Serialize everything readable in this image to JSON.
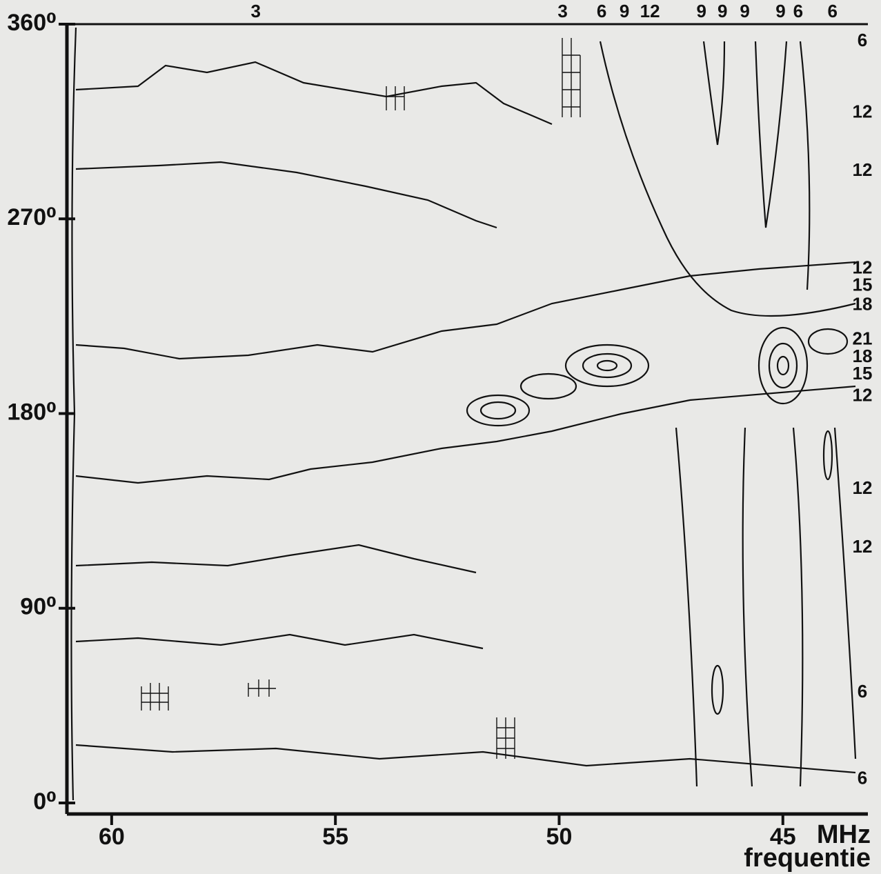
{
  "chart_data": {
    "type": "contour",
    "x_unit": "MHz",
    "x_title": "frequentie",
    "xlim": [
      61.0,
      43.1
    ],
    "ylim": [
      0,
      360
    ],
    "xticks": [
      60,
      55,
      50,
      45
    ],
    "yticks": [
      {
        "value": 0,
        "label": "0⁰"
      },
      {
        "value": 90,
        "label": "90⁰"
      },
      {
        "value": 180,
        "label": "180⁰"
      },
      {
        "value": 270,
        "label": "270⁰"
      },
      {
        "value": 360,
        "label": "360⁰"
      }
    ],
    "top_levels": [
      {
        "level": 3,
        "x": 56.78
      },
      {
        "level": 3,
        "x": 49.92
      },
      {
        "level": 6,
        "x": 49.05
      },
      {
        "level": 9,
        "x": 48.54
      },
      {
        "level": 12,
        "x": 47.97
      },
      {
        "level": 9,
        "x": 46.82
      },
      {
        "level": 9,
        "x": 46.35
      },
      {
        "level": 9,
        "x": 45.85
      },
      {
        "level": 9,
        "x": 45.05
      },
      {
        "level": 6,
        "x": 44.66
      },
      {
        "level": 6,
        "x": 43.89
      }
    ],
    "right_levels": [
      {
        "level": 6,
        "y": 352
      },
      {
        "level": 12,
        "y": 319
      },
      {
        "level": 12,
        "y": 292
      },
      {
        "level": 12,
        "y": 247
      },
      {
        "level": 15,
        "y": 239
      },
      {
        "level": 18,
        "y": 230
      },
      {
        "level": 21,
        "y": 214
      },
      {
        "level": 18,
        "y": 206
      },
      {
        "level": 15,
        "y": 198
      },
      {
        "level": 12,
        "y": 188
      },
      {
        "level": 12,
        "y": 145
      },
      {
        "level": 12,
        "y": 118
      },
      {
        "level": 6,
        "y": 51
      },
      {
        "level": 6,
        "y": 11
      }
    ]
  }
}
